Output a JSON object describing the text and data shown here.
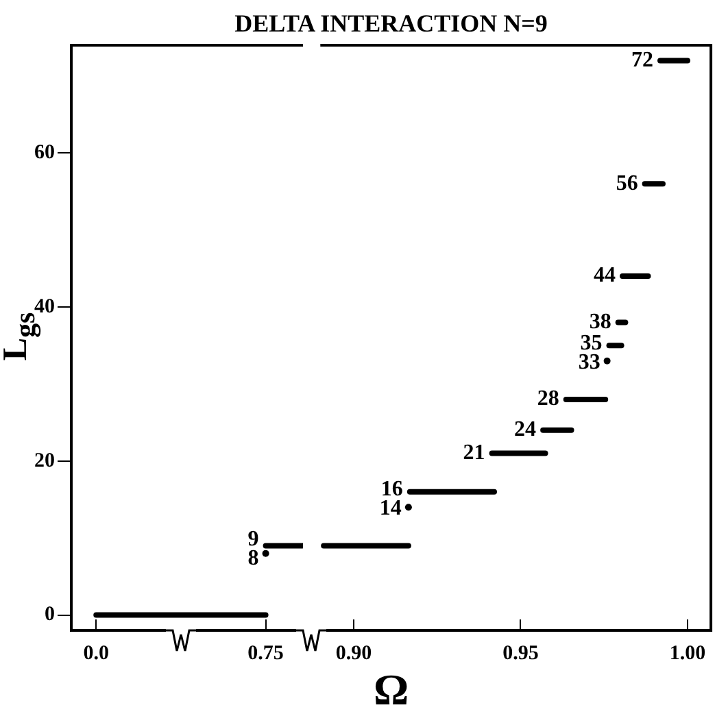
{
  "chart_data": [
    {
      "type": "line",
      "title": "DELTA INTERACTION N=9",
      "ylabel": "L$_{gs}$",
      "marker": "none",
      "grid": false,
      "legend": false,
      "series": [
        {
          "color": "#000000",
          "x": [
            0.0,
            0.75
          ],
          "values": [
            0,
            0
          ]
        },
        {
          "type": "scatter",
          "marker": "circle",
          "color": "#000000",
          "x": [
            0.75
          ],
          "values": [
            8
          ],
          "value_labels": [
            "8"
          ]
        },
        {
          "color": "#000000",
          "x": [
            0.75,
            0.91
          ],
          "values": [
            9,
            9
          ],
          "value_labels": [
            "9",
            null
          ]
        }
      ],
      "xlim": [
        -0.11,
        0.915
      ],
      "xticks": [
        {
          "value": 0,
          "label": "0.0"
        },
        {
          "value": 0.75,
          "label": "0.75"
        }
      ],
      "ylim": [
        -2,
        74
      ],
      "yticks": [
        0,
        20,
        40,
        60
      ]
    },
    {
      "type": "line",
      "xlabel": "Ω",
      "marker": "none",
      "grid": false,
      "legend": false,
      "tick_labels": "x",
      "series": [
        {
          "color": "#000000",
          "x": [
            0.891,
            0.9164
          ],
          "values": [
            9,
            9
          ]
        },
        {
          "type": "scatter",
          "marker": "circle",
          "color": "#000000",
          "x": [
            0.9164
          ],
          "values": [
            14
          ],
          "value_labels": [
            "14"
          ]
        },
        {
          "color": "#000000",
          "x": [
            0.9168,
            0.9421
          ],
          "values": [
            16,
            16
          ],
          "value_labels": [
            "16",
            null
          ]
        },
        {
          "color": "#000000",
          "x": [
            0.9414,
            0.9574
          ],
          "values": [
            21,
            21
          ],
          "value_labels": [
            "21",
            null
          ]
        },
        {
          "color": "#000000",
          "x": [
            0.9567,
            0.9652
          ],
          "values": [
            24,
            24
          ],
          "value_labels": [
            "24",
            null
          ]
        },
        {
          "color": "#000000",
          "x": [
            0.9636,
            0.9754
          ],
          "values": [
            28,
            28
          ],
          "value_labels": [
            "28",
            null
          ]
        },
        {
          "type": "scatter",
          "marker": "circle",
          "color": "#000000",
          "x": [
            0.9759
          ],
          "values": [
            33
          ],
          "value_labels": [
            "33"
          ]
        },
        {
          "color": "#000000",
          "x": [
            0.9765,
            0.9802
          ],
          "values": [
            35,
            35
          ],
          "value_labels": [
            "35",
            null
          ]
        },
        {
          "color": "#000000",
          "x": [
            0.9792,
            0.9814
          ],
          "values": [
            38,
            38
          ],
          "value_labels": [
            "38",
            null
          ]
        },
        {
          "color": "#000000",
          "x": [
            0.9805,
            0.9882
          ],
          "values": [
            44,
            44
          ],
          "value_labels": [
            "44",
            null
          ]
        },
        {
          "color": "#000000",
          "x": [
            0.9872,
            0.9926
          ],
          "values": [
            56,
            56
          ],
          "value_labels": [
            "56",
            null
          ]
        },
        {
          "color": "#000000",
          "x": [
            0.9918,
            1.0
          ],
          "values": [
            72,
            72
          ],
          "value_labels": [
            "72",
            null
          ]
        }
      ],
      "xlim": [
        0.89,
        1.007
      ],
      "xticks": [
        {
          "value": 0.9,
          "label": "0.90"
        },
        {
          "value": 0.95,
          "label": "0.95"
        },
        {
          "value": 1,
          "label": "1.00"
        }
      ],
      "ylim": [
        -2,
        74
      ]
    }
  ]
}
